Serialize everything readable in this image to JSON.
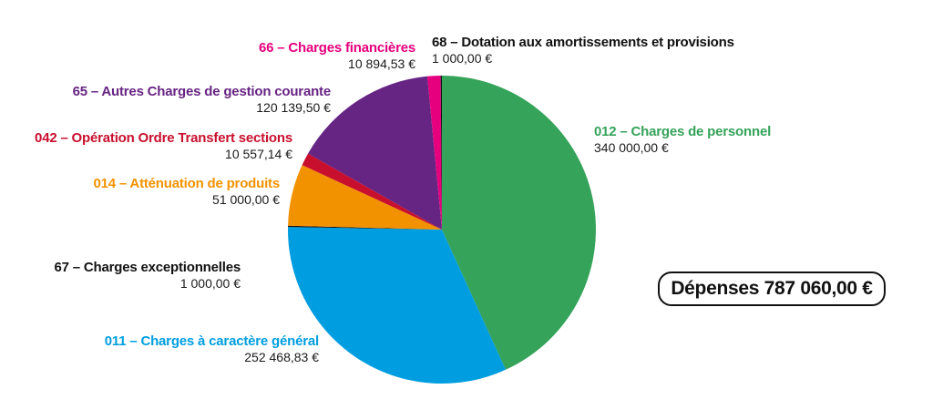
{
  "chart_data": {
    "type": "pie",
    "title": "",
    "total_label": "Dépenses 787 060,00 €",
    "slices": [
      {
        "code": "012",
        "name": "012 – Charges de personnel",
        "value": 340000.0,
        "value_label": "340 000,00 €",
        "color": "#35a35a"
      },
      {
        "code": "011",
        "name": "011 – Charges à caractère général",
        "value": 252468.83,
        "value_label": "252 468,83 €",
        "color": "#009ee0"
      },
      {
        "code": "67",
        "name": "67 – Charges exceptionnelles",
        "value": 1000.0,
        "value_label": "1 000,00 €",
        "color": "#111111"
      },
      {
        "code": "014",
        "name": "014 – Atténuation de produits",
        "value": 51000.0,
        "value_label": "51 000,00 €",
        "color": "#f39200"
      },
      {
        "code": "042",
        "name": "042 – Opération Ordre Transfert sections",
        "value": 10557.14,
        "value_label": "10 557,14 €",
        "color": "#c8102e"
      },
      {
        "code": "65",
        "name": "65 – Autres Charges de gestion courante",
        "value": 120139.5,
        "value_label": "120 139,50 €",
        "color": "#662483"
      },
      {
        "code": "66",
        "name": "66 – Charges financières",
        "value": 10894.53,
        "value_label": "10 894,53 €",
        "color": "#e6007e"
      },
      {
        "code": "68",
        "name": "68 – Dotation aux amortissements et provisions",
        "value": 1000.0,
        "value_label": "1 000,00 €",
        "color": "#111111"
      }
    ]
  }
}
